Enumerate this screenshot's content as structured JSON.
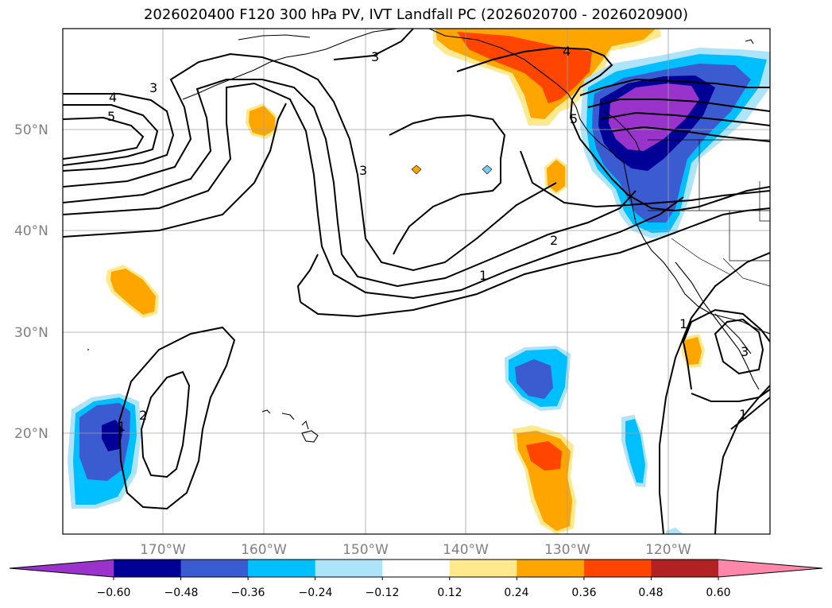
{
  "title": "2026020400 F120 300 hPa PV, IVT Landfall PC (2026020700 - 2026020900)",
  "map": {
    "lat_labels": [
      "50°N",
      "40°N",
      "30°N",
      "20°N"
    ],
    "lon_labels": [
      "170°W",
      "160°W",
      "150°W",
      "140°W",
      "130°W",
      "120°W"
    ],
    "contour_labels": [
      "5",
      "4",
      "3",
      "3",
      "4",
      "5",
      "3",
      "2",
      "1",
      "1",
      "2",
      "1",
      "1",
      "3"
    ]
  },
  "colorbar": {
    "ticks": [
      "−0.60",
      "−0.48",
      "−0.36",
      "−0.24",
      "−0.12",
      "0.12",
      "0.24",
      "0.36",
      "0.48",
      "0.60"
    ],
    "colors": [
      "#9933cc",
      "#000096",
      "#3b5bd0",
      "#00bfff",
      "#ade4fa",
      "#ffffff",
      "#ffe98c",
      "#ffa500",
      "#ff4500",
      "#b22222",
      "#ff88aa"
    ]
  }
}
